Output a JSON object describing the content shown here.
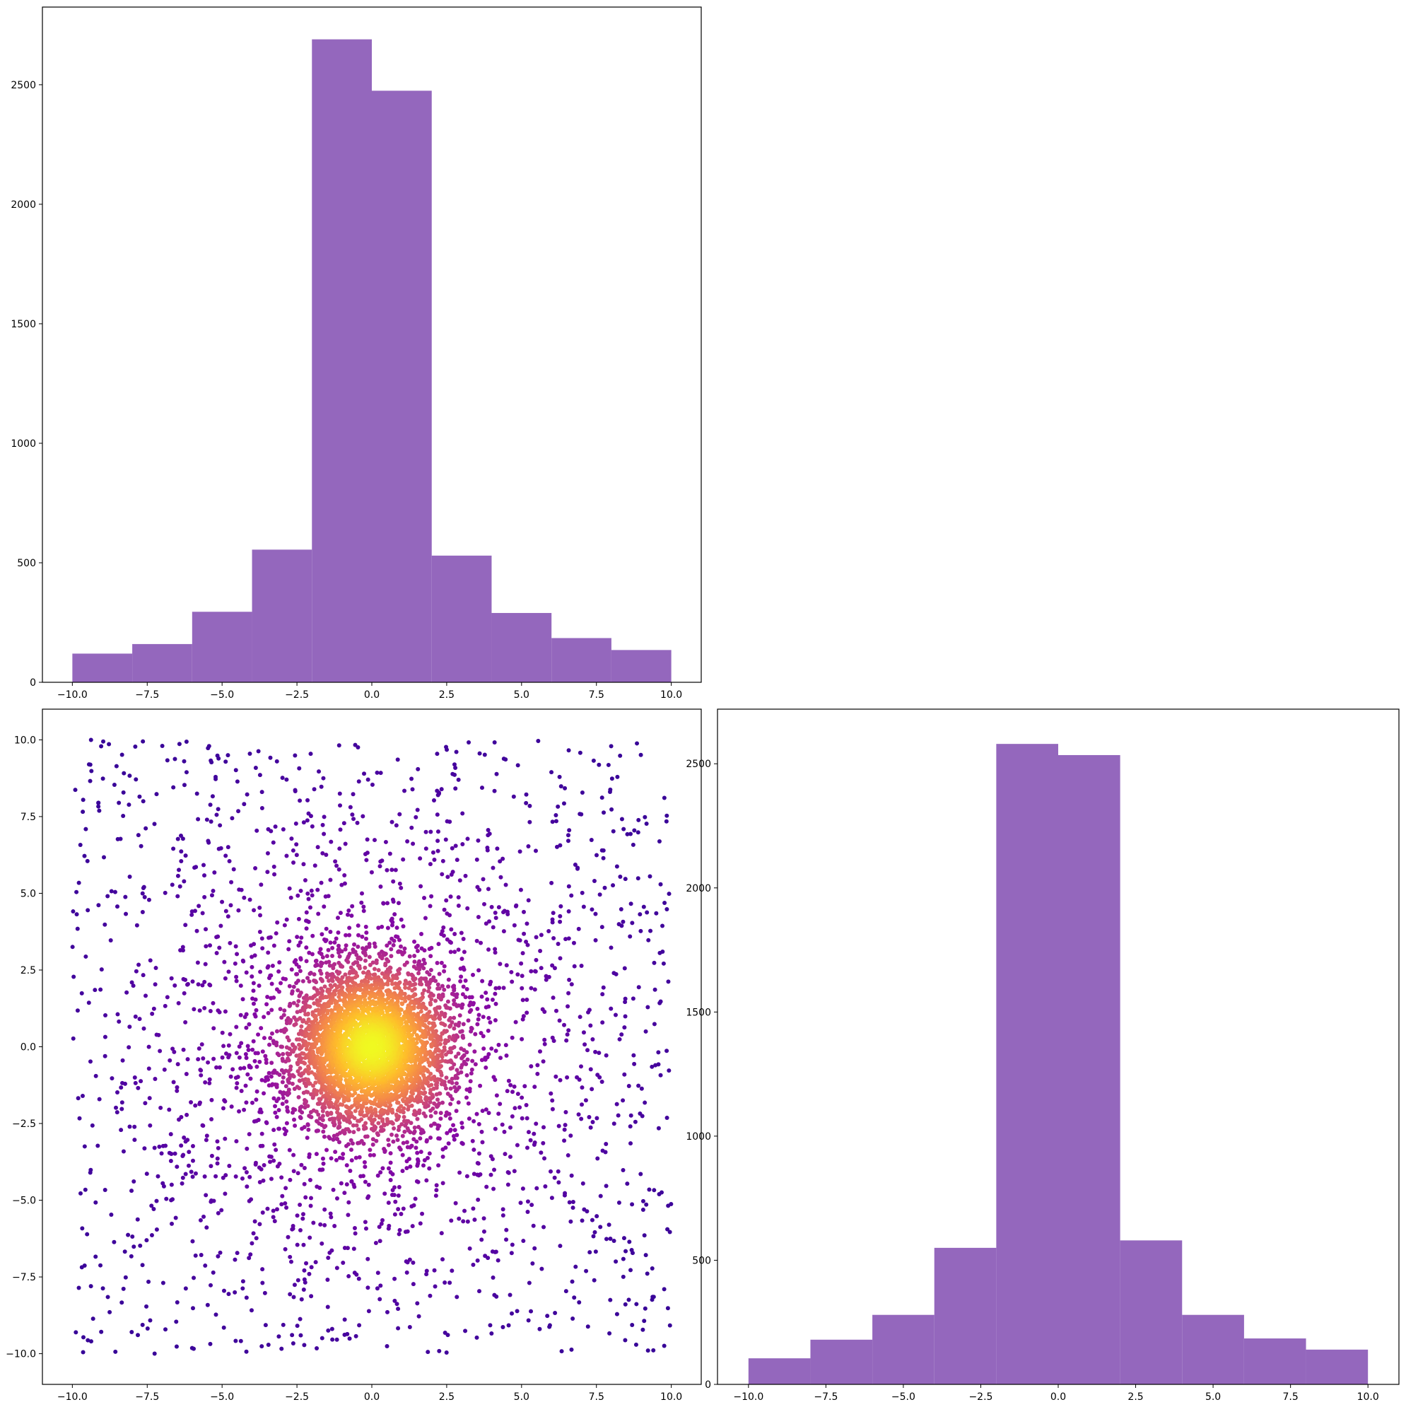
{
  "colors": {
    "bar_fill": "#9467bd",
    "scatter_colormap": "plasma",
    "scatter_low": "#2b069f",
    "scatter_high": "#f5f924"
  },
  "chart_data": [
    {
      "id": "top-left-histogram",
      "type": "bar",
      "position": "top-left",
      "bin_edges": [
        -10,
        -8,
        -6,
        -4,
        -2,
        0,
        2,
        4,
        6,
        8,
        10
      ],
      "values": [
        120,
        160,
        295,
        555,
        2690,
        2475,
        530,
        290,
        185,
        135
      ],
      "xlim": [
        -11,
        11
      ],
      "ylim": [
        0,
        2825
      ],
      "xticks": [
        -10.0,
        -7.5,
        -5.0,
        -2.5,
        0.0,
        2.5,
        5.0,
        7.5,
        10.0
      ],
      "xtick_labels": [
        "−10.0",
        "−7.5",
        "−5.0",
        "−2.5",
        "0.0",
        "2.5",
        "5.0",
        "7.5",
        "10.0"
      ],
      "yticks": [
        0,
        500,
        1000,
        1500,
        2000,
        2500
      ],
      "ytick_labels": [
        "0",
        "500",
        "1000",
        "1500",
        "2000",
        "2500"
      ],
      "title": "",
      "xlabel": "",
      "ylabel": "",
      "grid": false,
      "legend": "none"
    },
    {
      "id": "bottom-left-scatter",
      "type": "scatter",
      "position": "bottom-left",
      "points_shown": 6000,
      "center": [
        0,
        0
      ],
      "range": [
        -10,
        10
      ],
      "color_encoding": "density (plasma colormap, brightest at center)",
      "xlim": [
        -11,
        11
      ],
      "ylim": [
        -11,
        11
      ],
      "xticks": [
        -10.0,
        -7.5,
        -5.0,
        -2.5,
        0.0,
        2.5,
        5.0,
        7.5,
        10.0
      ],
      "xtick_labels": [
        "−10.0",
        "−7.5",
        "−5.0",
        "−2.5",
        "0.0",
        "2.5",
        "5.0",
        "7.5",
        "10.0"
      ],
      "yticks": [
        -10.0,
        -7.5,
        -5.0,
        -2.5,
        0.0,
        2.5,
        5.0,
        7.5,
        10.0
      ],
      "ytick_labels": [
        "−10.0",
        "−7.5",
        "−5.0",
        "−2.5",
        "0.0",
        "2.5",
        "5.0",
        "7.5",
        "10.0"
      ],
      "title": "",
      "xlabel": "",
      "ylabel": "",
      "grid": false,
      "legend": "none"
    },
    {
      "id": "bottom-right-histogram",
      "type": "bar",
      "position": "bottom-right",
      "bin_edges": [
        -10,
        -8,
        -6,
        -4,
        -2,
        0,
        2,
        4,
        6,
        8,
        10
      ],
      "values": [
        105,
        180,
        280,
        550,
        2580,
        2535,
        580,
        280,
        185,
        140
      ],
      "xlim": [
        -11,
        11
      ],
      "ylim": [
        0,
        2720
      ],
      "xticks": [
        -10.0,
        -7.5,
        -5.0,
        -2.5,
        0.0,
        2.5,
        5.0,
        7.5,
        10.0
      ],
      "xtick_labels": [
        "−10.0",
        "−7.5",
        "−5.0",
        "−2.5",
        "0.0",
        "2.5",
        "5.0",
        "7.5",
        "10.0"
      ],
      "yticks": [
        0,
        500,
        1000,
        1500,
        2000,
        2500
      ],
      "ytick_labels": [
        "0",
        "500",
        "1000",
        "1500",
        "2000",
        "2500"
      ],
      "title": "",
      "xlabel": "",
      "ylabel": "",
      "grid": false,
      "legend": "none"
    }
  ]
}
